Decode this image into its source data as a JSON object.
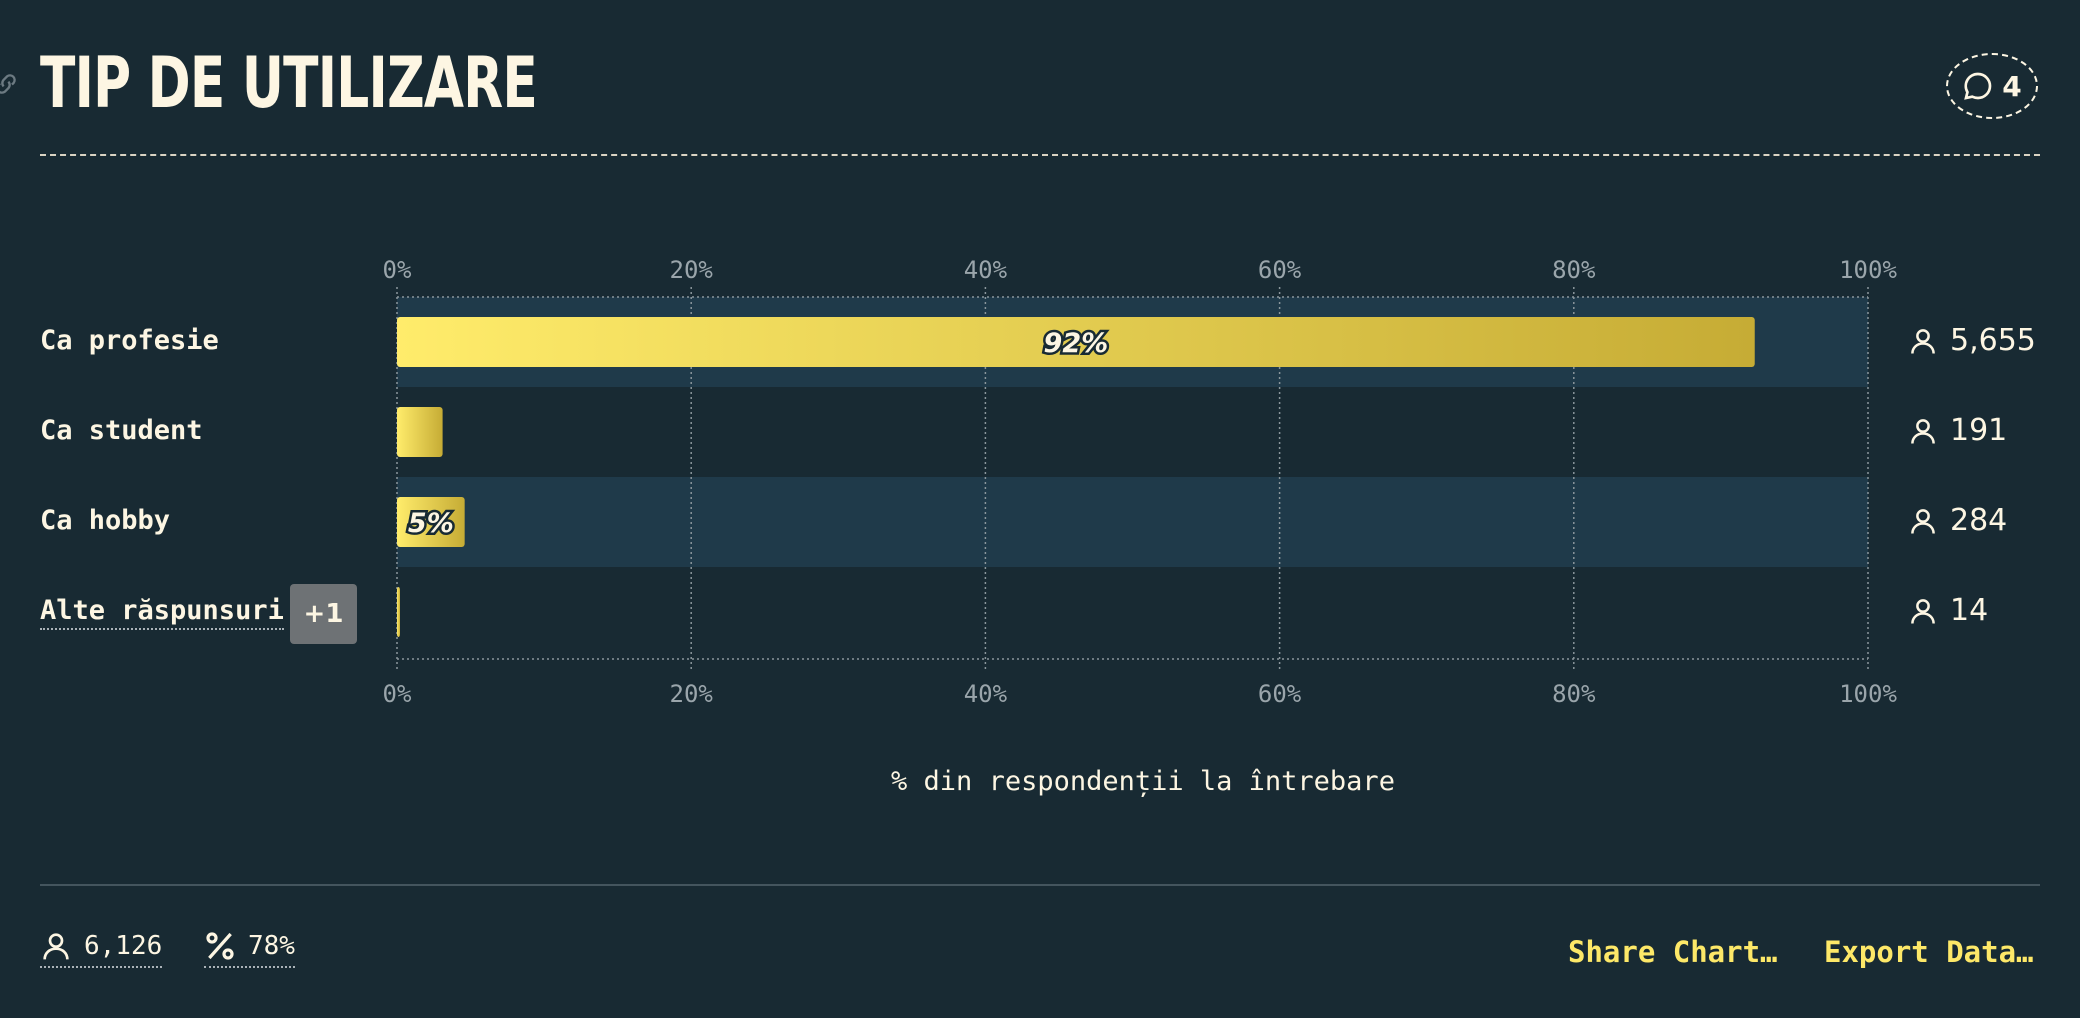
{
  "header": {
    "title": "TIP DE UTILIZARE",
    "comment_count": "4"
  },
  "chart_data": {
    "type": "bar",
    "orientation": "horizontal",
    "xlabel": "% din respondenții la întrebare",
    "xlim": [
      0,
      100
    ],
    "ticks": [
      "0%",
      "20%",
      "40%",
      "60%",
      "80%",
      "100%"
    ],
    "categories": [
      "Ca profesie",
      "Ca student",
      "Ca hobby",
      "Alte răspunsuri"
    ],
    "values": [
      92.3,
      3.1,
      4.6,
      0.2
    ],
    "data_labels": [
      "92%",
      "",
      "5%",
      ""
    ],
    "counts": [
      "5,655",
      "191",
      "284",
      "14"
    ],
    "grid": true
  },
  "other_answers_badge": "+1",
  "footer": {
    "total_respondents": "6,126",
    "response_rate": "78%",
    "share_label": "Share Chart…",
    "export_label": "Export Data…"
  },
  "colors": {
    "background": "#182a33",
    "row_highlight": "#1f3a4a",
    "bar_start": "#ffec6b",
    "bar_end": "#c6ac35",
    "accent": "#fde868"
  },
  "icons": [
    "link-icon",
    "comment-icon",
    "user-icon",
    "percent-icon"
  ]
}
